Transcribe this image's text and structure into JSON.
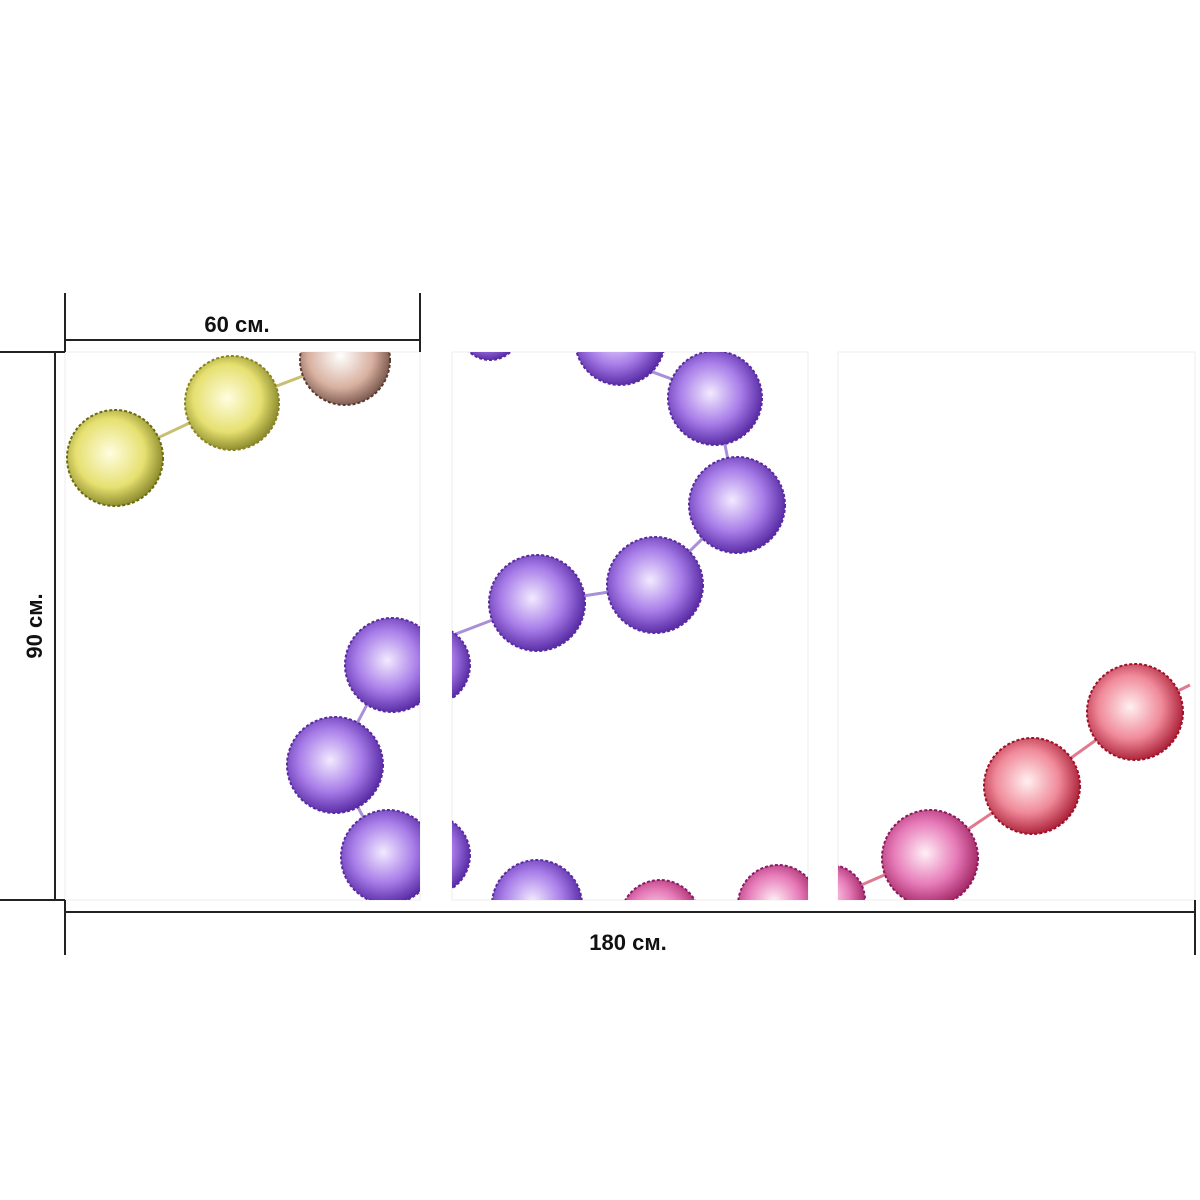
{
  "dimensions": {
    "width_label": "60 см.",
    "height_label": "90 см.",
    "total_width_label": "180 см."
  }
}
